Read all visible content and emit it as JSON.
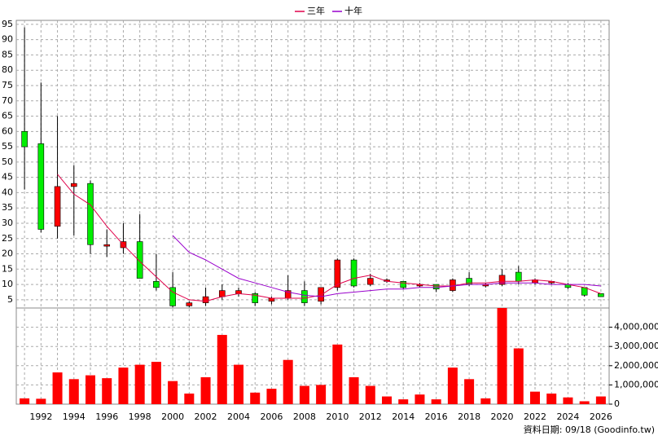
{
  "chart_data": {
    "type": "candlestick",
    "legend": "top",
    "grid": true,
    "source_note": "資料日期: 09/18 (Goodinfo.tw)",
    "up_color": "#ff0000",
    "down_color": "#00ee00",
    "categories": [
      null,
      "1992",
      null,
      "1994",
      null,
      "1996",
      null,
      "1998",
      null,
      "2000",
      null,
      "2002",
      null,
      "2004",
      null,
      "2006",
      null,
      "2008",
      null,
      "2010",
      null,
      "2012",
      null,
      "2014",
      null,
      "2016",
      null,
      "2018",
      null,
      "2020",
      null,
      "2022",
      null,
      "2024",
      null,
      "2026"
    ],
    "open": [
      60,
      56,
      29,
      42,
      43,
      22.5,
      22,
      24,
      11,
      9,
      3,
      4,
      6,
      7,
      7,
      4.5,
      5.5,
      8,
      4.5,
      9,
      18,
      10,
      11,
      11,
      9.5,
      10,
      8,
      12,
      9.5,
      10,
      14,
      10.5,
      10.5,
      10,
      9,
      7
    ],
    "high": [
      94,
      76,
      65,
      49,
      44,
      28,
      30,
      33,
      20,
      14,
      4.5,
      9,
      10,
      9,
      7.5,
      6,
      13,
      11,
      9,
      18.5,
      18.5,
      13.5,
      12,
      11,
      10.5,
      10,
      12,
      14,
      10.5,
      15,
      16,
      12,
      11,
      10.5,
      9,
      7
    ],
    "low": [
      41,
      27,
      25,
      26,
      20,
      19,
      20,
      12,
      8,
      2.5,
      2.5,
      3,
      5,
      6,
      3,
      3.5,
      5,
      3,
      3.5,
      8,
      9,
      9.5,
      10.5,
      8.5,
      9,
      7.5,
      7.5,
      9.5,
      9,
      9.5,
      10,
      10,
      10,
      8.5,
      6,
      6
    ],
    "close": [
      55,
      28,
      42,
      43,
      23,
      23,
      24,
      12,
      9,
      3,
      4,
      6,
      8,
      8,
      4,
      5.5,
      8,
      4,
      9,
      18,
      9.5,
      12,
      11.5,
      9,
      10,
      8.5,
      11.5,
      10,
      10,
      13,
      11,
      11.5,
      11,
      9,
      6.5,
      6
    ],
    "series": [
      {
        "name": "三年",
        "color": "#e0004a",
        "values": [
          null,
          null,
          46,
          39.5,
          36,
          29,
          23,
          17.5,
          12.5,
          7.5,
          5,
          4.5,
          6,
          7,
          6.5,
          5.5,
          5.5,
          5.5,
          6.5,
          10,
          12,
          13,
          11,
          10.5,
          10,
          9.5,
          9.5,
          10.5,
          10.5,
          11,
          11,
          11.5,
          11,
          10,
          9,
          7
        ]
      },
      {
        "name": "十年",
        "color": "#9900cc",
        "values": [
          null,
          null,
          null,
          null,
          null,
          null,
          null,
          null,
          null,
          26,
          20.5,
          18,
          15,
          12,
          10.5,
          9,
          7.5,
          6.5,
          6,
          7,
          7.5,
          8,
          8.5,
          8.5,
          9,
          9,
          9.5,
          10,
          10,
          10.5,
          10.5,
          10.5,
          10,
          10,
          10,
          9.5
        ]
      }
    ],
    "ylim": [
      2.3,
      96.3
    ],
    "yticks": [
      5,
      10,
      15,
      20,
      25,
      30,
      35,
      40,
      45,
      50,
      55,
      60,
      65,
      70,
      75,
      80,
      85,
      90,
      95
    ],
    "volume": {
      "color": "#ff0000",
      "values": [
        300000,
        280000,
        1650000,
        1300000,
        1500000,
        1350000,
        1900000,
        2050000,
        2200000,
        1200000,
        550000,
        1400000,
        3600000,
        2050000,
        600000,
        800000,
        2300000,
        950000,
        1000000,
        3100000,
        1400000,
        950000,
        400000,
        250000,
        500000,
        250000,
        1900000,
        1300000,
        300000,
        5000000,
        2900000,
        650000,
        550000,
        350000,
        150000,
        400000
      ],
      "ylim": [
        0,
        5000000
      ],
      "yticks": [
        0,
        {
          "value": 1000000,
          "label": "1,000,000"
        },
        {
          "value": 2000000,
          "label": "2,000,000"
        },
        {
          "value": 3000000,
          "label": "3,000,000"
        },
        {
          "value": 4000000,
          "label": "4,000,000"
        }
      ]
    }
  }
}
